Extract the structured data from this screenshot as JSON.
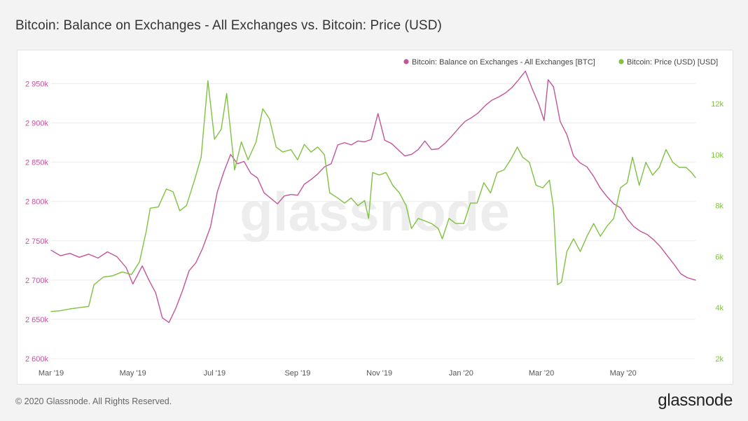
{
  "title": "Bitcoin: Balance on Exchanges - All Exchanges vs. Bitcoin: Price (USD)",
  "watermark": "glassnode",
  "footer": {
    "copyright": "© 2020 Glassnode. All Rights Reserved.",
    "brand": "glassnode"
  },
  "chart_data": {
    "type": "line",
    "legend_position": "top-right",
    "grid": "horizontal",
    "x_ticks": [
      "Mar '19",
      "May '19",
      "Jul '19",
      "Sep '19",
      "Nov '19",
      "Jan '20",
      "Mar '20",
      "May '20"
    ],
    "x_tick_dates": [
      "2019-03-01",
      "2019-05-01",
      "2019-07-01",
      "2019-09-01",
      "2019-11-01",
      "2020-01-01",
      "2020-03-01",
      "2020-05-01"
    ],
    "xlim": [
      "2019-03-01",
      "2020-06-24"
    ],
    "y_left": {
      "ticks": [
        "2 600k",
        "2 650k",
        "2 700k",
        "2 750k",
        "2 800k",
        "2 850k",
        "2 900k",
        "2 950k"
      ],
      "tick_values": [
        2600000,
        2650000,
        2700000,
        2750000,
        2800000,
        2850000,
        2900000,
        2950000
      ],
      "range": [
        2600000,
        2970000
      ],
      "color": "#c2559b"
    },
    "y_right": {
      "ticks": [
        "2k",
        "4k",
        "6k",
        "8k",
        "10k",
        "12k"
      ],
      "tick_values": [
        2000,
        4000,
        6000,
        8000,
        10000,
        12000
      ],
      "range": [
        2000,
        13400
      ],
      "color": "#7fc241"
    },
    "series": [
      {
        "name": "Bitcoin: Balance on Exchanges - All Exchanges [BTC]",
        "axis": "left",
        "color": "#c2559b",
        "points": [
          [
            "2019-03-01",
            2738000
          ],
          [
            "2019-03-08",
            2731000
          ],
          [
            "2019-03-15",
            2734000
          ],
          [
            "2019-03-22",
            2729000
          ],
          [
            "2019-03-29",
            2733000
          ],
          [
            "2019-04-05",
            2728000
          ],
          [
            "2019-04-12",
            2736000
          ],
          [
            "2019-04-19",
            2730000
          ],
          [
            "2019-04-26",
            2716000
          ],
          [
            "2019-05-01",
            2695000
          ],
          [
            "2019-05-08",
            2718000
          ],
          [
            "2019-05-13",
            2700000
          ],
          [
            "2019-05-18",
            2684000
          ],
          [
            "2019-05-23",
            2652000
          ],
          [
            "2019-05-28",
            2646000
          ],
          [
            "2019-06-02",
            2664000
          ],
          [
            "2019-06-07",
            2686000
          ],
          [
            "2019-06-12",
            2712000
          ],
          [
            "2019-06-17",
            2722000
          ],
          [
            "2019-06-22",
            2740000
          ],
          [
            "2019-06-28",
            2768000
          ],
          [
            "2019-07-03",
            2812000
          ],
          [
            "2019-07-08",
            2838000
          ],
          [
            "2019-07-13",
            2860000
          ],
          [
            "2019-07-18",
            2848000
          ],
          [
            "2019-07-23",
            2851000
          ],
          [
            "2019-07-28",
            2836000
          ],
          [
            "2019-08-02",
            2830000
          ],
          [
            "2019-08-07",
            2811000
          ],
          [
            "2019-08-12",
            2804000
          ],
          [
            "2019-08-17",
            2797000
          ],
          [
            "2019-08-22",
            2807000
          ],
          [
            "2019-08-27",
            2809000
          ],
          [
            "2019-09-01",
            2808000
          ],
          [
            "2019-09-06",
            2822000
          ],
          [
            "2019-09-11",
            2828000
          ],
          [
            "2019-09-16",
            2835000
          ],
          [
            "2019-09-21",
            2844000
          ],
          [
            "2019-09-26",
            2848000
          ],
          [
            "2019-10-01",
            2872000
          ],
          [
            "2019-10-06",
            2875000
          ],
          [
            "2019-10-11",
            2872000
          ],
          [
            "2019-10-16",
            2877000
          ],
          [
            "2019-10-21",
            2876000
          ],
          [
            "2019-10-26",
            2879000
          ],
          [
            "2019-10-31",
            2912000
          ],
          [
            "2019-11-05",
            2878000
          ],
          [
            "2019-11-10",
            2874000
          ],
          [
            "2019-11-15",
            2866000
          ],
          [
            "2019-11-20",
            2858000
          ],
          [
            "2019-11-25",
            2860000
          ],
          [
            "2019-11-30",
            2866000
          ],
          [
            "2019-12-05",
            2877000
          ],
          [
            "2019-12-10",
            2866000
          ],
          [
            "2019-12-15",
            2867000
          ],
          [
            "2019-12-20",
            2874000
          ],
          [
            "2019-12-25",
            2883000
          ],
          [
            "2019-12-30",
            2893000
          ],
          [
            "2020-01-04",
            2902000
          ],
          [
            "2020-01-09",
            2907000
          ],
          [
            "2020-01-14",
            2913000
          ],
          [
            "2020-01-19",
            2922000
          ],
          [
            "2020-01-24",
            2929000
          ],
          [
            "2020-01-29",
            2933000
          ],
          [
            "2020-02-03",
            2938000
          ],
          [
            "2020-02-08",
            2945000
          ],
          [
            "2020-02-13",
            2955000
          ],
          [
            "2020-02-18",
            2966000
          ],
          [
            "2020-02-23",
            2944000
          ],
          [
            "2020-02-28",
            2924000
          ],
          [
            "2020-03-03",
            2903000
          ],
          [
            "2020-03-06",
            2955000
          ],
          [
            "2020-03-10",
            2946000
          ],
          [
            "2020-03-15",
            2902000
          ],
          [
            "2020-03-20",
            2885000
          ],
          [
            "2020-03-25",
            2858000
          ],
          [
            "2020-03-30",
            2849000
          ],
          [
            "2020-04-04",
            2844000
          ],
          [
            "2020-04-09",
            2832000
          ],
          [
            "2020-04-14",
            2817000
          ],
          [
            "2020-04-19",
            2806000
          ],
          [
            "2020-04-24",
            2797000
          ],
          [
            "2020-04-29",
            2792000
          ],
          [
            "2020-05-04",
            2778000
          ],
          [
            "2020-05-09",
            2768000
          ],
          [
            "2020-05-14",
            2762000
          ],
          [
            "2020-05-19",
            2758000
          ],
          [
            "2020-05-24",
            2751000
          ],
          [
            "2020-05-29",
            2742000
          ],
          [
            "2020-06-03",
            2731000
          ],
          [
            "2020-06-08",
            2720000
          ],
          [
            "2020-06-13",
            2708000
          ],
          [
            "2020-06-18",
            2703000
          ],
          [
            "2020-06-24",
            2700000
          ]
        ]
      },
      {
        "name": "Bitcoin: Price (USD) [USD]",
        "axis": "right",
        "color": "#7fc241",
        "points": [
          [
            "2019-03-01",
            3850
          ],
          [
            "2019-03-08",
            3880
          ],
          [
            "2019-03-15",
            3950
          ],
          [
            "2019-03-22",
            4000
          ],
          [
            "2019-03-29",
            4050
          ],
          [
            "2019-04-02",
            4900
          ],
          [
            "2019-04-09",
            5200
          ],
          [
            "2019-04-16",
            5250
          ],
          [
            "2019-04-23",
            5400
          ],
          [
            "2019-04-30",
            5300
          ],
          [
            "2019-05-06",
            5800
          ],
          [
            "2019-05-11",
            7000
          ],
          [
            "2019-05-14",
            7900
          ],
          [
            "2019-05-20",
            7950
          ],
          [
            "2019-05-26",
            8650
          ],
          [
            "2019-05-31",
            8550
          ],
          [
            "2019-06-05",
            7800
          ],
          [
            "2019-06-10",
            8000
          ],
          [
            "2019-06-16",
            9000
          ],
          [
            "2019-06-21",
            9900
          ],
          [
            "2019-06-26",
            12900
          ],
          [
            "2019-07-01",
            10600
          ],
          [
            "2019-07-06",
            11000
          ],
          [
            "2019-07-10",
            12400
          ],
          [
            "2019-07-16",
            9400
          ],
          [
            "2019-07-21",
            10500
          ],
          [
            "2019-07-26",
            9800
          ],
          [
            "2019-08-01",
            10500
          ],
          [
            "2019-08-06",
            11800
          ],
          [
            "2019-08-11",
            11400
          ],
          [
            "2019-08-16",
            10300
          ],
          [
            "2019-08-21",
            10100
          ],
          [
            "2019-08-27",
            10200
          ],
          [
            "2019-09-01",
            9800
          ],
          [
            "2019-09-06",
            10400
          ],
          [
            "2019-09-11",
            10100
          ],
          [
            "2019-09-16",
            10300
          ],
          [
            "2019-09-21",
            10000
          ],
          [
            "2019-09-25",
            8500
          ],
          [
            "2019-10-01",
            8300
          ],
          [
            "2019-10-06",
            8100
          ],
          [
            "2019-10-11",
            8300
          ],
          [
            "2019-10-16",
            8000
          ],
          [
            "2019-10-21",
            8200
          ],
          [
            "2019-10-24",
            7500
          ],
          [
            "2019-10-27",
            9300
          ],
          [
            "2019-11-01",
            9200
          ],
          [
            "2019-11-06",
            9300
          ],
          [
            "2019-11-11",
            8800
          ],
          [
            "2019-11-16",
            8500
          ],
          [
            "2019-11-21",
            8000
          ],
          [
            "2019-11-25",
            7100
          ],
          [
            "2019-11-30",
            7500
          ],
          [
            "2019-12-05",
            7400
          ],
          [
            "2019-12-10",
            7300
          ],
          [
            "2019-12-15",
            7100
          ],
          [
            "2019-12-18",
            6700
          ],
          [
            "2019-12-23",
            7500
          ],
          [
            "2019-12-28",
            7300
          ],
          [
            "2020-01-03",
            7300
          ],
          [
            "2020-01-08",
            8100
          ],
          [
            "2020-01-13",
            8100
          ],
          [
            "2020-01-18",
            8900
          ],
          [
            "2020-01-23",
            8500
          ],
          [
            "2020-01-28",
            9300
          ],
          [
            "2020-02-02",
            9400
          ],
          [
            "2020-02-07",
            9800
          ],
          [
            "2020-02-12",
            10300
          ],
          [
            "2020-02-16",
            9900
          ],
          [
            "2020-02-21",
            9700
          ],
          [
            "2020-02-26",
            8800
          ],
          [
            "2020-03-02",
            8700
          ],
          [
            "2020-03-07",
            9000
          ],
          [
            "2020-03-10",
            7900
          ],
          [
            "2020-03-13",
            4900
          ],
          [
            "2020-03-16",
            5000
          ],
          [
            "2020-03-20",
            6200
          ],
          [
            "2020-03-25",
            6700
          ],
          [
            "2020-03-30",
            6200
          ],
          [
            "2020-04-04",
            6800
          ],
          [
            "2020-04-09",
            7300
          ],
          [
            "2020-04-14",
            6800
          ],
          [
            "2020-04-19",
            7200
          ],
          [
            "2020-04-24",
            7500
          ],
          [
            "2020-04-29",
            8700
          ],
          [
            "2020-05-04",
            8900
          ],
          [
            "2020-05-08",
            9900
          ],
          [
            "2020-05-13",
            8800
          ],
          [
            "2020-05-18",
            9700
          ],
          [
            "2020-05-23",
            9200
          ],
          [
            "2020-05-28",
            9500
          ],
          [
            "2020-06-02",
            10200
          ],
          [
            "2020-06-07",
            9700
          ],
          [
            "2020-06-12",
            9500
          ],
          [
            "2020-06-17",
            9500
          ],
          [
            "2020-06-21",
            9300
          ],
          [
            "2020-06-24",
            9100
          ]
        ]
      }
    ]
  }
}
